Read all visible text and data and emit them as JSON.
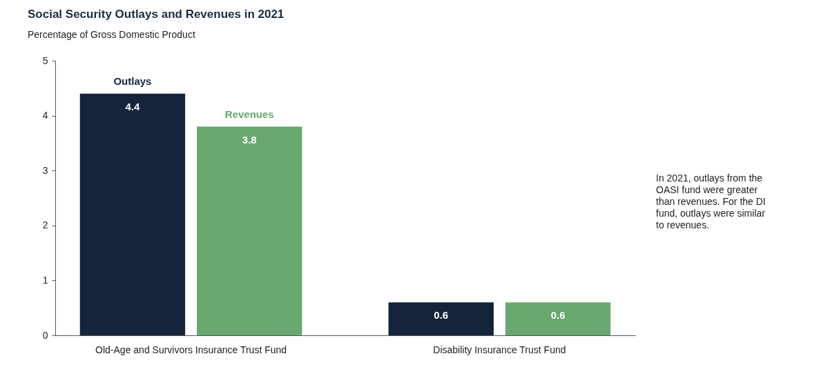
{
  "chart_data": {
    "type": "bar",
    "title": "Social Security Outlays and Revenues in 2021",
    "subtitle": "Percentage of Gross Domestic Product",
    "categories": [
      "Old-Age and Survivors Insurance Trust Fund",
      "Disability Insurance Trust Fund"
    ],
    "series": [
      {
        "name": "Outlays",
        "color": "#14243a",
        "values": [
          4.4,
          0.6
        ]
      },
      {
        "name": "Revenues",
        "color": "#69a86f",
        "values": [
          3.8,
          0.6
        ]
      }
    ],
    "ylim": [
      0,
      5
    ],
    "yticks": [
      0,
      1,
      2,
      3,
      4,
      5
    ],
    "grid": false,
    "legend": false,
    "data_labels": true,
    "annotations": [
      "In 2021, outlays from the OASI fund were greater than revenues. For the DI fund, outlays were similar to revenues."
    ]
  }
}
